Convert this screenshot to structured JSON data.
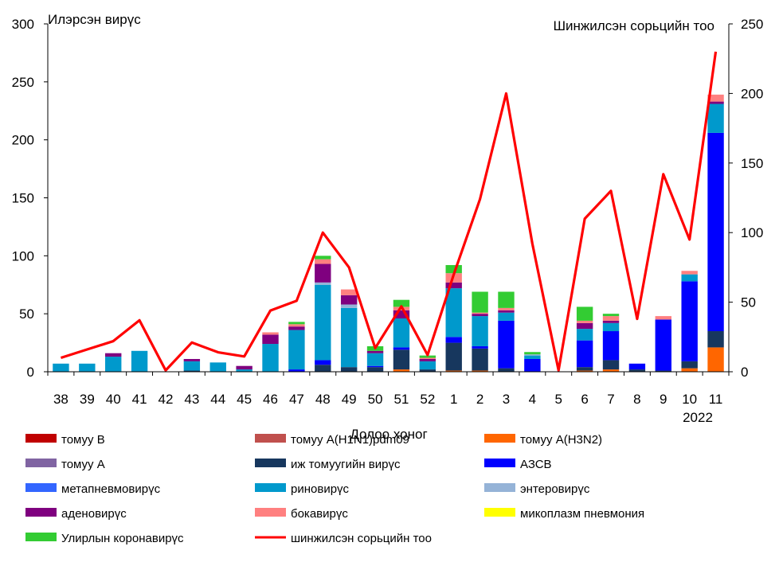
{
  "chart_data": {
    "type": "bar",
    "left_axis_title": "Илэрсэн вирүс",
    "right_axis_title": "Шинжилсэн сорьцийн тоо",
    "xlabel": "Долоо хоног",
    "year_label": "2022",
    "y_left_range": [
      0,
      300
    ],
    "y_left_ticks": [
      "0",
      "50",
      "100",
      "150",
      "200",
      "250",
      "300"
    ],
    "y_right_range": [
      0,
      250
    ],
    "y_right_ticks": [
      "0",
      "50",
      "100",
      "150",
      "200",
      "250"
    ],
    "categories": [
      "38",
      "39",
      "40",
      "41",
      "42",
      "43",
      "44",
      "45",
      "46",
      "47",
      "48",
      "49",
      "50",
      "51",
      "52",
      "1",
      "2",
      "3",
      "4",
      "5",
      "6",
      "7",
      "8",
      "9",
      "10",
      "11"
    ],
    "series": [
      {
        "name": "томуу B",
        "color": "#c00000",
        "values": [
          0,
          0,
          0,
          0,
          0,
          0,
          0,
          0,
          0,
          0,
          0,
          0,
          0,
          0,
          0,
          0,
          0,
          0,
          0,
          0,
          0,
          0,
          0,
          0,
          0,
          0
        ]
      },
      {
        "name": "томуу A(H1N1)pdm09",
        "color": "#c0504d",
        "values": [
          0,
          0,
          0,
          0,
          0,
          0,
          0,
          0,
          0,
          0,
          0,
          0,
          0,
          0,
          0,
          0,
          0,
          0,
          0,
          0,
          0,
          0,
          0,
          0,
          0,
          0
        ]
      },
      {
        "name": "томуу A(H3N2)",
        "color": "#ff6600",
        "values": [
          0,
          0,
          0,
          0,
          0,
          0,
          0,
          0,
          0,
          0,
          0,
          0,
          0,
          2,
          0,
          1,
          1,
          0,
          0,
          0,
          1,
          2,
          0,
          0,
          3,
          21
        ]
      },
      {
        "name": "томуу A",
        "color": "#8064a2",
        "values": [
          0,
          0,
          0,
          0,
          0,
          0,
          0,
          0,
          0,
          0,
          0,
          0,
          0,
          0,
          0,
          0,
          0,
          0,
          0,
          0,
          0,
          0,
          0,
          0,
          0,
          0
        ]
      },
      {
        "name": "иж томуугийн вирүс",
        "color": "#17375e",
        "values": [
          0,
          0,
          0,
          0,
          0,
          1,
          0,
          0,
          0,
          0,
          6,
          4,
          4,
          17,
          2,
          24,
          19,
          3,
          0,
          0,
          3,
          8,
          2,
          1,
          6,
          14
        ]
      },
      {
        "name": "АЗСВ",
        "color": "#0000ff",
        "values": [
          0,
          0,
          0,
          0,
          0,
          0,
          0,
          0,
          0,
          2,
          4,
          0,
          1,
          2,
          0,
          5,
          2,
          41,
          11,
          0,
          23,
          25,
          5,
          44,
          69,
          171
        ]
      },
      {
        "name": "метапневмовирүс",
        "color": "#3366ff",
        "values": [
          0,
          0,
          0,
          0,
          0,
          0,
          0,
          0,
          0,
          0,
          0,
          0,
          0,
          0,
          0,
          0,
          0,
          0,
          0,
          0,
          0,
          0,
          0,
          0,
          0,
          0
        ]
      },
      {
        "name": "риновирүс",
        "color": "#0099cc",
        "values": [
          7,
          7,
          13,
          18,
          0,
          8,
          8,
          2,
          24,
          34,
          65,
          51,
          11,
          25,
          7,
          42,
          26,
          7,
          3,
          0,
          10,
          7,
          0,
          0,
          6,
          25
        ]
      },
      {
        "name": "энтеровирүс",
        "color": "#95b3d7",
        "values": [
          0,
          0,
          0,
          0,
          0,
          0,
          0,
          0,
          0,
          0,
          2,
          3,
          0,
          0,
          0,
          0,
          0,
          0,
          1,
          0,
          0,
          0,
          0,
          0,
          0,
          0
        ]
      },
      {
        "name": "аденовирүс",
        "color": "#7f007f",
        "values": [
          0,
          0,
          3,
          0,
          0,
          2,
          0,
          3,
          8,
          3,
          16,
          8,
          2,
          7,
          2,
          5,
          2,
          2,
          0,
          0,
          5,
          2,
          0,
          0,
          0,
          2
        ]
      },
      {
        "name": "бокавирүс",
        "color": "#ff8080",
        "values": [
          0,
          0,
          0,
          0,
          0,
          0,
          0,
          0,
          2,
          2,
          4,
          5,
          0,
          3,
          1,
          8,
          1,
          2,
          0,
          0,
          2,
          4,
          0,
          3,
          3,
          6
        ]
      },
      {
        "name": "микоплазм пневмония",
        "color": "#ffff00",
        "values": [
          0,
          0,
          0,
          0,
          0,
          0,
          0,
          0,
          0,
          0,
          0,
          0,
          0,
          0,
          0,
          0,
          0,
          0,
          0,
          0,
          0,
          0,
          0,
          0,
          0,
          0
        ]
      },
      {
        "name": "Улирлын коронавирүс",
        "color": "#33cc33",
        "values": [
          0,
          0,
          0,
          0,
          0,
          0,
          0,
          0,
          0,
          2,
          3,
          0,
          4,
          6,
          2,
          7,
          18,
          14,
          2,
          0,
          12,
          2,
          0,
          0,
          0,
          0
        ]
      }
    ],
    "line": {
      "name": "шинжилсэн сорьцийн тоо",
      "color": "#ff0000",
      "axis": "right",
      "values": [
        10,
        16,
        22,
        37,
        1,
        21,
        14,
        11,
        44,
        51,
        100,
        75,
        17,
        47,
        12,
        70,
        124,
        200,
        92,
        1,
        110,
        130,
        38,
        142,
        95,
        230
      ]
    },
    "legend_order": [
      "томуу B",
      "томуу A(H1N1)pdm09",
      "томуу A(H3N2)",
      "томуу A",
      "иж томуугийн вирүс",
      "АЗСВ",
      "метапневмовирүс",
      "риновирүс",
      "энтеровирүс",
      "аденовирүс",
      "бокавирүс",
      "микоплазм пневмония",
      "Улирлын коронавирүс",
      "шинжилсэн сорьцийн тоо"
    ],
    "legend_placement": "bottom",
    "grid": false
  }
}
